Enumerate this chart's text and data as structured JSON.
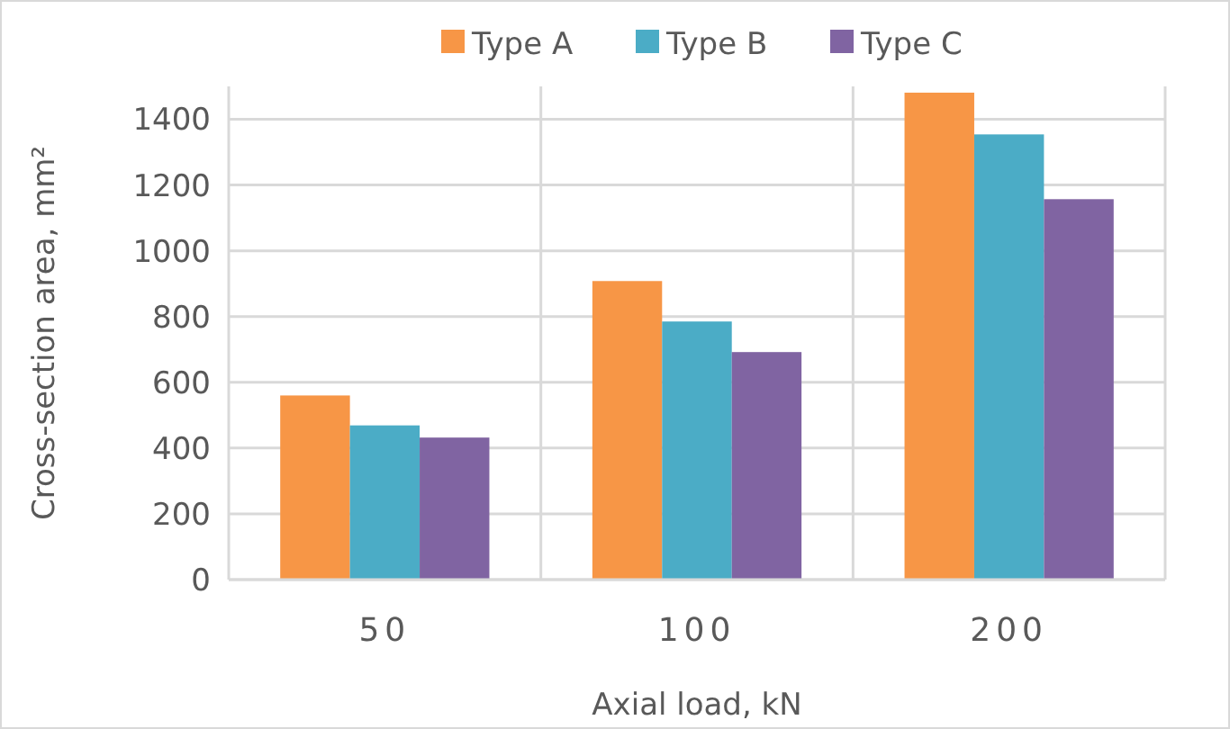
{
  "chart_data": {
    "type": "bar",
    "xlabel": "Axial load, kN",
    "ylabel": "Cross-section area, mm²",
    "categories": [
      "50",
      "100",
      "200"
    ],
    "series": [
      {
        "name": "Type A",
        "color": "#f79646",
        "values": [
          560,
          908,
          1481
        ]
      },
      {
        "name": "Type B",
        "color": "#4bacc6",
        "values": [
          469,
          785,
          1354
        ]
      },
      {
        "name": "Type C",
        "color": "#8064a2",
        "values": [
          432,
          692,
          1157
        ]
      }
    ],
    "ylim": [
      0,
      1500
    ],
    "yticks": [
      0,
      200,
      400,
      600,
      800,
      1000,
      1200,
      1400
    ],
    "grid": true,
    "legend": "top"
  }
}
